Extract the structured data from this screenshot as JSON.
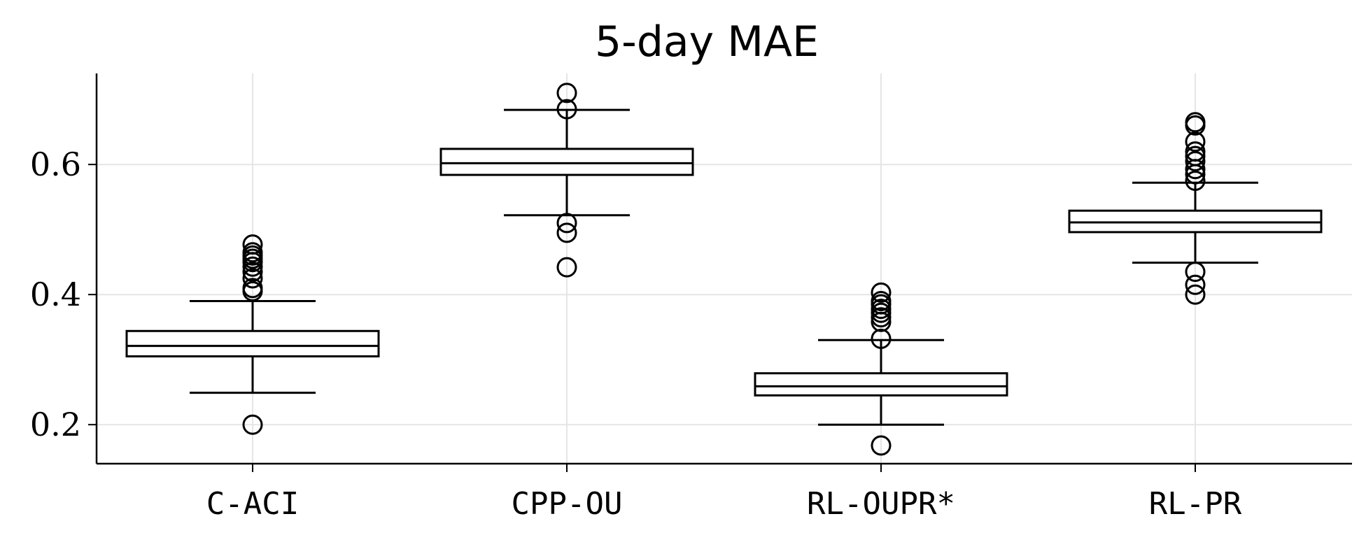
{
  "chart_data": {
    "type": "box",
    "title": "5-day MAE",
    "xlabel": "",
    "ylabel": "",
    "ylim": [
      0.14,
      0.74
    ],
    "yticks": [
      0.2,
      0.4,
      0.6
    ],
    "ytick_labels": [
      "0.2",
      "0.4",
      "0.6"
    ],
    "grid": true,
    "categories": [
      "C-ACI",
      "CPP-OU",
      "RL-OUPR*",
      "RL-PR"
    ],
    "boxes": [
      {
        "name": "C-ACI",
        "whisker_low": 0.249,
        "q1": 0.305,
        "median": 0.321,
        "q3": 0.344,
        "whisker_high": 0.39,
        "outliers": [
          0.2,
          0.405,
          0.41,
          0.425,
          0.435,
          0.443,
          0.45,
          0.455,
          0.46,
          0.465,
          0.477
        ]
      },
      {
        "name": "CPP-OU",
        "whisker_low": 0.522,
        "q1": 0.584,
        "median": 0.602,
        "q3": 0.624,
        "whisker_high": 0.684,
        "outliers": [
          0.442,
          0.495,
          0.51,
          0.685,
          0.71
        ]
      },
      {
        "name": "RL-OUPR*",
        "whisker_low": 0.2,
        "q1": 0.245,
        "median": 0.259,
        "q3": 0.279,
        "whisker_high": 0.33,
        "outliers": [
          0.168,
          0.332,
          0.358,
          0.365,
          0.372,
          0.378,
          0.385,
          0.39,
          0.403
        ]
      },
      {
        "name": "RL-PR",
        "whisker_low": 0.449,
        "q1": 0.496,
        "median": 0.511,
        "q3": 0.529,
        "whisker_high": 0.572,
        "outliers": [
          0.4,
          0.415,
          0.435,
          0.575,
          0.585,
          0.593,
          0.605,
          0.613,
          0.62,
          0.635,
          0.66,
          0.665
        ]
      }
    ],
    "colors": {
      "box_edge": "#000000",
      "box_fill": "#ffffff",
      "grid": "#e5e5e5"
    }
  }
}
